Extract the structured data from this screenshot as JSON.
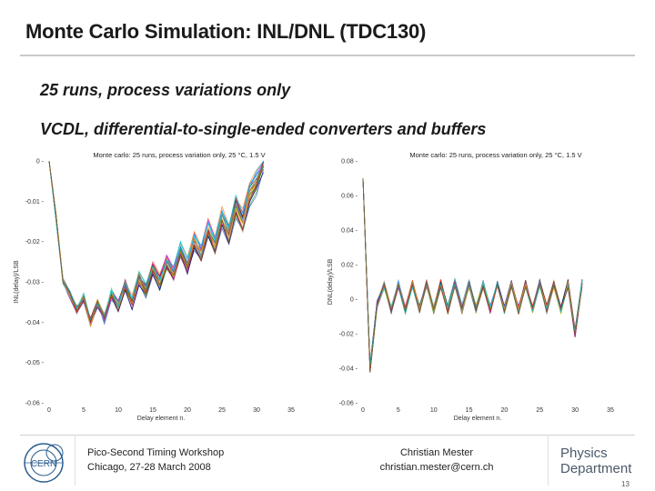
{
  "slide": {
    "title": "Monte Carlo Simulation: INL/DNL (TDC130)",
    "bullets": [
      "25 runs, process variations only",
      "VCDL, differential-to-single-ended converters and buffers"
    ],
    "page_number": "13"
  },
  "footer": {
    "workshop_line1": "Pico-Second Timing Workshop",
    "workshop_line2": "Chicago, 27-28 March 2008",
    "author_name": "Christian Mester",
    "author_email": "christian.mester@cern.ch",
    "department_line1": "Physics",
    "department_line2": "Department",
    "logo_text": "CERN"
  },
  "chart_data": [
    {
      "type": "line",
      "title": "Monte carlo: 25 runs, process variation only, 25 °C, 1.5 V",
      "xlabel": "Delay element n.",
      "ylabel": "INL(delay)/LSB",
      "xlim": [
        0,
        35
      ],
      "ylim": [
        -0.06,
        0
      ],
      "x_ticks": [
        "0",
        "5",
        "10",
        "15",
        "20",
        "25",
        "30",
        "35"
      ],
      "y_ticks": [
        "0",
        "-0.01",
        "-0.02",
        "-0.03",
        "-0.04",
        "-0.05",
        "-0.06"
      ],
      "runs": 25,
      "x": [
        0,
        1,
        2,
        3,
        4,
        5,
        6,
        7,
        8,
        9,
        10,
        11,
        12,
        13,
        14,
        15,
        16,
        17,
        18,
        19,
        20,
        21,
        22,
        23,
        24,
        25,
        26,
        27,
        28,
        29,
        30,
        31
      ],
      "values": [
        0,
        -0.014,
        -0.03,
        -0.033,
        -0.037,
        -0.034,
        -0.04,
        -0.035,
        -0.039,
        -0.033,
        -0.036,
        -0.031,
        -0.035,
        -0.029,
        -0.032,
        -0.027,
        -0.03,
        -0.025,
        -0.028,
        -0.022,
        -0.026,
        -0.02,
        -0.023,
        -0.017,
        -0.021,
        -0.014,
        -0.018,
        -0.011,
        -0.015,
        -0.008,
        -0.005,
        -0.001
      ]
    },
    {
      "type": "line",
      "title": "Monte carlo: 25 runs, process variation only, 25 °C, 1.5 V",
      "xlabel": "Delay element n.",
      "ylabel": "DNL(delay)/LSB",
      "xlim": [
        0,
        35
      ],
      "ylim": [
        -0.06,
        0.08
      ],
      "x_ticks": [
        "0",
        "5",
        "10",
        "15",
        "20",
        "25",
        "30",
        "35"
      ],
      "y_ticks": [
        "0.08",
        "0.06",
        "0.04",
        "0.02",
        "0",
        "-0.02",
        "-0.04",
        "-0.06"
      ],
      "runs": 25,
      "x": [
        0,
        1,
        2,
        3,
        4,
        5,
        6,
        7,
        8,
        9,
        10,
        11,
        12,
        13,
        14,
        15,
        16,
        17,
        18,
        19,
        20,
        21,
        22,
        23,
        24,
        25,
        26,
        27,
        28,
        29,
        30,
        31
      ],
      "values": [
        0.07,
        -0.04,
        -0.003,
        0.008,
        -0.006,
        0.009,
        -0.006,
        0.009,
        -0.006,
        0.009,
        -0.006,
        0.009,
        -0.006,
        0.009,
        -0.006,
        0.009,
        -0.006,
        0.009,
        -0.006,
        0.009,
        -0.006,
        0.009,
        -0.006,
        0.009,
        -0.006,
        0.009,
        -0.006,
        0.009,
        -0.006,
        0.009,
        -0.02,
        0.01
      ]
    }
  ]
}
